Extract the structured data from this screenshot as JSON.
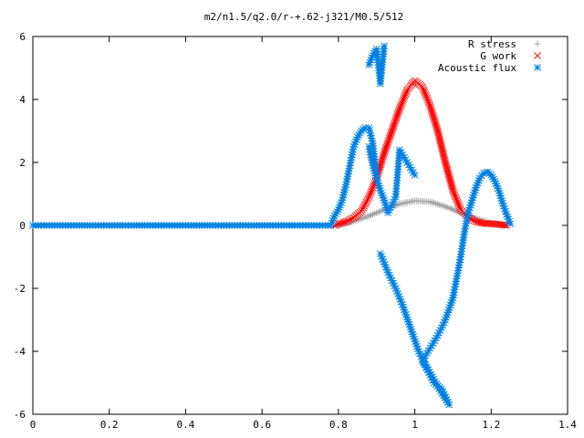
{
  "chart_data": {
    "type": "scatter",
    "title": "m2/n1.5/q2.0/r-+.62-j321/M0.5/512",
    "xlabel": "",
    "ylabel": "",
    "xlim": [
      0,
      1.4
    ],
    "ylim": [
      -6,
      6
    ],
    "x_ticks": [
      "0",
      "0.2",
      "0.4",
      "0.6",
      "0.8",
      "1",
      "1.2",
      "1.4"
    ],
    "y_ticks": [
      "-6",
      "-4",
      "-2",
      "0",
      "2",
      "4",
      "6"
    ],
    "grid": false,
    "legend_position": "top-right",
    "series": [
      {
        "name": "R stress",
        "marker": "plus",
        "color": "#a0a0a0",
        "x": [
          0.8,
          0.84,
          0.88,
          0.92,
          0.96,
          1.0,
          1.04,
          1.08,
          1.12,
          1.16,
          1.2,
          1.24
        ],
        "y": [
          0.0,
          0.13,
          0.3,
          0.5,
          0.68,
          0.78,
          0.75,
          0.6,
          0.4,
          0.22,
          0.08,
          0.0
        ]
      },
      {
        "name": "G work",
        "marker": "cross",
        "color": "#ff0000",
        "x": [
          0.79,
          0.8,
          0.82,
          0.84,
          0.86,
          0.88,
          0.9,
          0.92,
          0.94,
          0.96,
          0.98,
          1.0,
          1.02,
          1.04,
          1.06,
          1.08,
          1.1,
          1.12,
          1.14,
          1.16,
          1.18,
          1.2,
          1.22,
          1.24
        ],
        "y": [
          0.0,
          0.05,
          0.12,
          0.25,
          0.45,
          0.9,
          1.5,
          2.3,
          3.0,
          3.7,
          4.3,
          4.6,
          4.4,
          3.8,
          3.0,
          2.0,
          1.1,
          0.5,
          0.25,
          0.12,
          0.06,
          0.05,
          0.03,
          0.0
        ]
      },
      {
        "name": "Acoustic flux",
        "marker": "star",
        "color": "#0080e0",
        "x": [
          0.0,
          0.1,
          0.2,
          0.3,
          0.4,
          0.5,
          0.6,
          0.7,
          0.78,
          0.79,
          0.8,
          0.81,
          0.82,
          0.83,
          0.84,
          0.85,
          0.86,
          0.87,
          0.88,
          0.89,
          0.9,
          0.88,
          0.89,
          0.9,
          0.91,
          0.92,
          0.88,
          0.89,
          0.9,
          0.91,
          0.92,
          0.93,
          0.95,
          0.96,
          0.98,
          1.0,
          0.91,
          0.93,
          0.95,
          0.97,
          0.99,
          1.01,
          1.03,
          1.05,
          1.07,
          1.09,
          1.02,
          1.04,
          1.06,
          1.08,
          1.1,
          1.12,
          1.13,
          1.14,
          1.15,
          1.16,
          1.17,
          1.18,
          1.19,
          1.2,
          1.21,
          1.22,
          1.23,
          1.24,
          1.25
        ],
        "y": [
          0.0,
          0.0,
          0.0,
          0.0,
          0.0,
          0.0,
          0.0,
          0.0,
          0.0,
          0.3,
          0.5,
          0.8,
          1.3,
          1.9,
          2.5,
          2.8,
          3.0,
          3.1,
          3.1,
          2.6,
          1.6,
          5.1,
          5.4,
          5.6,
          4.5,
          5.7,
          2.5,
          1.9,
          1.5,
          1.1,
          0.8,
          0.4,
          0.9,
          2.4,
          2.0,
          1.6,
          -0.9,
          -1.5,
          -2.0,
          -2.6,
          -3.3,
          -4.0,
          -4.5,
          -5.0,
          -5.2,
          -5.7,
          -4.3,
          -3.9,
          -3.5,
          -3.0,
          -2.3,
          -1.0,
          -0.2,
          0.4,
          0.8,
          1.2,
          1.5,
          1.65,
          1.7,
          1.6,
          1.4,
          1.1,
          0.7,
          0.35,
          0.05
        ]
      }
    ]
  }
}
